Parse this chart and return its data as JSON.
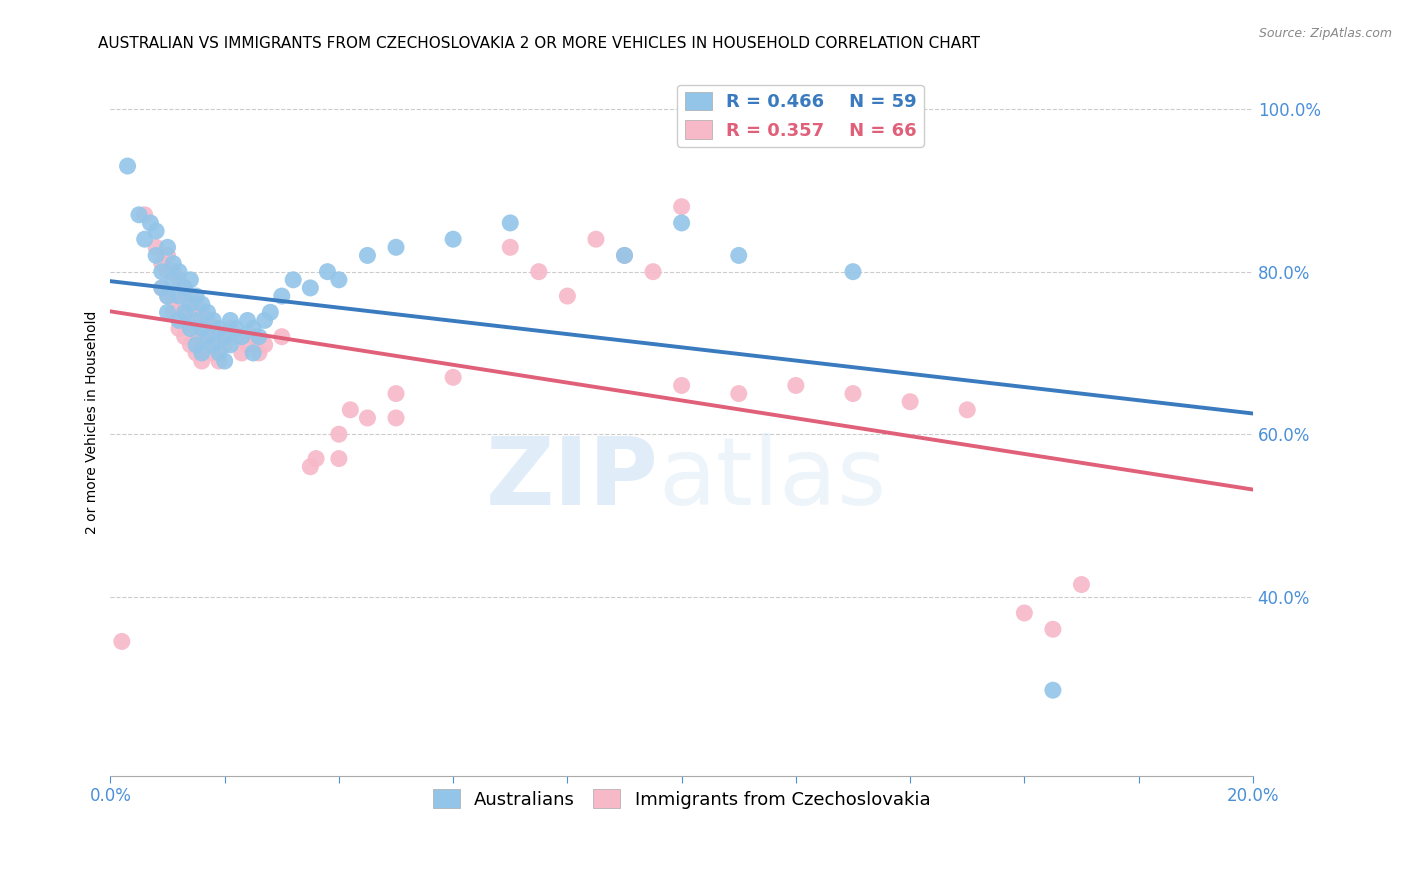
{
  "title": "AUSTRALIAN VS IMMIGRANTS FROM CZECHOSLOVAKIA 2 OR MORE VEHICLES IN HOUSEHOLD CORRELATION CHART",
  "source": "Source: ZipAtlas.com",
  "ylabel": "2 or more Vehicles in Household",
  "right_yticks": [
    40.0,
    60.0,
    80.0,
    100.0
  ],
  "watermark_zip": "ZIP",
  "watermark_atlas": "atlas",
  "blue_color": "#92c5e8",
  "pink_color": "#f7b8c8",
  "blue_line_color": "#3a7abf",
  "pink_line_color": "#e0607a",
  "blue_scatter": [
    [
      0.003,
      0.93
    ],
    [
      0.005,
      0.87
    ],
    [
      0.006,
      0.84
    ],
    [
      0.007,
      0.86
    ],
    [
      0.008,
      0.82
    ],
    [
      0.008,
      0.85
    ],
    [
      0.009,
      0.78
    ],
    [
      0.009,
      0.8
    ],
    [
      0.01,
      0.83
    ],
    [
      0.01,
      0.77
    ],
    [
      0.01,
      0.75
    ],
    [
      0.011,
      0.79
    ],
    [
      0.011,
      0.81
    ],
    [
      0.012,
      0.8
    ],
    [
      0.012,
      0.77
    ],
    [
      0.012,
      0.74
    ],
    [
      0.013,
      0.78
    ],
    [
      0.013,
      0.75
    ],
    [
      0.014,
      0.79
    ],
    [
      0.014,
      0.76
    ],
    [
      0.014,
      0.73
    ],
    [
      0.015,
      0.77
    ],
    [
      0.015,
      0.74
    ],
    [
      0.015,
      0.71
    ],
    [
      0.016,
      0.76
    ],
    [
      0.016,
      0.73
    ],
    [
      0.016,
      0.7
    ],
    [
      0.017,
      0.75
    ],
    [
      0.017,
      0.72
    ],
    [
      0.018,
      0.74
    ],
    [
      0.018,
      0.71
    ],
    [
      0.019,
      0.73
    ],
    [
      0.019,
      0.7
    ],
    [
      0.02,
      0.72
    ],
    [
      0.02,
      0.69
    ],
    [
      0.021,
      0.74
    ],
    [
      0.021,
      0.71
    ],
    [
      0.022,
      0.73
    ],
    [
      0.023,
      0.72
    ],
    [
      0.024,
      0.74
    ],
    [
      0.025,
      0.73
    ],
    [
      0.025,
      0.7
    ],
    [
      0.026,
      0.72
    ],
    [
      0.027,
      0.74
    ],
    [
      0.028,
      0.75
    ],
    [
      0.03,
      0.77
    ],
    [
      0.032,
      0.79
    ],
    [
      0.035,
      0.78
    ],
    [
      0.038,
      0.8
    ],
    [
      0.04,
      0.79
    ],
    [
      0.045,
      0.82
    ],
    [
      0.05,
      0.83
    ],
    [
      0.06,
      0.84
    ],
    [
      0.07,
      0.86
    ],
    [
      0.09,
      0.82
    ],
    [
      0.1,
      0.86
    ],
    [
      0.11,
      0.82
    ],
    [
      0.13,
      0.8
    ],
    [
      0.165,
      0.285
    ]
  ],
  "pink_scatter": [
    [
      0.002,
      0.345
    ],
    [
      0.006,
      0.87
    ],
    [
      0.008,
      0.83
    ],
    [
      0.009,
      0.81
    ],
    [
      0.009,
      0.78
    ],
    [
      0.01,
      0.82
    ],
    [
      0.01,
      0.8
    ],
    [
      0.01,
      0.77
    ],
    [
      0.011,
      0.8
    ],
    [
      0.011,
      0.77
    ],
    [
      0.011,
      0.75
    ],
    [
      0.012,
      0.79
    ],
    [
      0.012,
      0.76
    ],
    [
      0.012,
      0.73
    ],
    [
      0.013,
      0.78
    ],
    [
      0.013,
      0.75
    ],
    [
      0.013,
      0.72
    ],
    [
      0.014,
      0.77
    ],
    [
      0.014,
      0.74
    ],
    [
      0.014,
      0.71
    ],
    [
      0.015,
      0.76
    ],
    [
      0.015,
      0.73
    ],
    [
      0.015,
      0.7
    ],
    [
      0.016,
      0.75
    ],
    [
      0.016,
      0.72
    ],
    [
      0.016,
      0.69
    ],
    [
      0.017,
      0.74
    ],
    [
      0.017,
      0.71
    ],
    [
      0.018,
      0.73
    ],
    [
      0.018,
      0.7
    ],
    [
      0.019,
      0.72
    ],
    [
      0.019,
      0.69
    ],
    [
      0.02,
      0.71
    ],
    [
      0.021,
      0.73
    ],
    [
      0.022,
      0.72
    ],
    [
      0.023,
      0.7
    ],
    [
      0.024,
      0.71
    ],
    [
      0.025,
      0.72
    ],
    [
      0.026,
      0.7
    ],
    [
      0.027,
      0.71
    ],
    [
      0.03,
      0.72
    ],
    [
      0.035,
      0.56
    ],
    [
      0.036,
      0.57
    ],
    [
      0.04,
      0.6
    ],
    [
      0.04,
      0.57
    ],
    [
      0.042,
      0.63
    ],
    [
      0.045,
      0.62
    ],
    [
      0.05,
      0.65
    ],
    [
      0.05,
      0.62
    ],
    [
      0.06,
      0.67
    ],
    [
      0.07,
      0.83
    ],
    [
      0.075,
      0.8
    ],
    [
      0.08,
      0.77
    ],
    [
      0.085,
      0.84
    ],
    [
      0.09,
      0.82
    ],
    [
      0.095,
      0.8
    ],
    [
      0.1,
      0.88
    ],
    [
      0.1,
      0.66
    ],
    [
      0.11,
      0.65
    ],
    [
      0.12,
      0.66
    ],
    [
      0.13,
      0.65
    ],
    [
      0.14,
      0.64
    ],
    [
      0.15,
      0.63
    ],
    [
      0.16,
      0.38
    ],
    [
      0.165,
      0.36
    ],
    [
      0.17,
      0.415
    ]
  ],
  "xmin": 0.0,
  "xmax": 0.2,
  "ymin": 0.18,
  "ymax": 1.05,
  "xtick_count": 10,
  "grid_color": "#cccccc",
  "background_color": "#ffffff",
  "title_fontsize": 11,
  "axis_label_fontsize": 10,
  "tick_fontsize": 12,
  "legend_fontsize": 13
}
